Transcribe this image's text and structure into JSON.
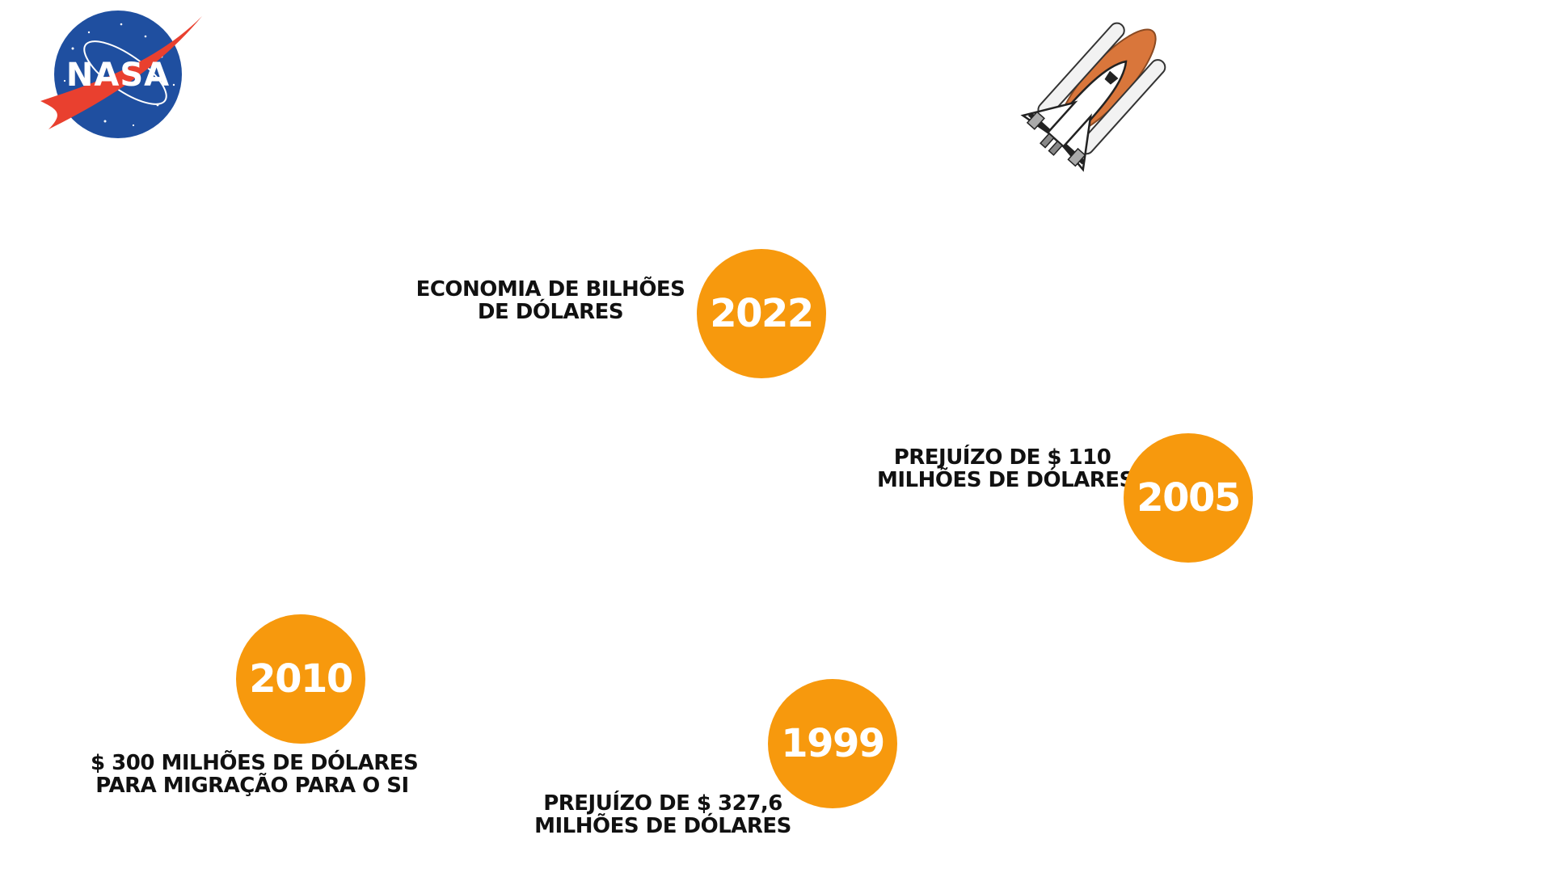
{
  "logo": {
    "text": "NASA",
    "colors": {
      "disc": "#1f4fa0",
      "chevron": "#e9402f",
      "text": "#ffffff"
    }
  },
  "illustration": {
    "icon": "space-shuttle-icon",
    "accent": "#d9763b"
  },
  "accent_color": "#f7990d",
  "milestones": [
    {
      "year": "2022",
      "label_lines": [
        "ECONOMIA DE BILHÕES",
        "DE DÓLARES"
      ]
    },
    {
      "year": "2005",
      "label_lines": [
        "PREJUÍZO DE $ 110",
        "MILHÕES DE DÓLARES"
      ]
    },
    {
      "year": "2010",
      "label_lines": [
        "$ 300 MILHÕES DE DÓLARES",
        "PARA MIGRAÇÃO PARA O SI"
      ]
    },
    {
      "year": "1999",
      "label_lines": [
        "PREJUÍZO DE $ 327,6",
        "MILHÕES DE DÓLARES"
      ]
    }
  ]
}
